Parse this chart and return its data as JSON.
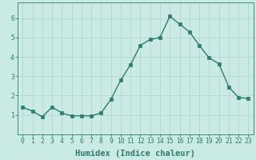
{
  "x": [
    0,
    1,
    2,
    3,
    4,
    5,
    6,
    7,
    8,
    9,
    10,
    11,
    12,
    13,
    14,
    15,
    16,
    17,
    18,
    19,
    20,
    21,
    22,
    23
  ],
  "y": [
    1.4,
    1.2,
    0.9,
    1.4,
    1.1,
    0.95,
    0.95,
    0.95,
    1.1,
    1.8,
    2.8,
    3.6,
    4.6,
    4.9,
    5.0,
    6.1,
    5.7,
    5.3,
    4.6,
    3.95,
    3.65,
    2.45,
    1.9,
    1.85
  ],
  "line_color": "#2e7d6e",
  "bg_color": "#caeae5",
  "grid_color": "#b8d8d3",
  "xlabel": "Humidex (Indice chaleur)",
  "ylim": [
    0,
    6.8
  ],
  "xlim": [
    -0.5,
    23.5
  ],
  "yticks": [
    1,
    2,
    3,
    4,
    5,
    6
  ],
  "xticks": [
    0,
    1,
    2,
    3,
    4,
    5,
    6,
    7,
    8,
    9,
    10,
    11,
    12,
    13,
    14,
    15,
    16,
    17,
    18,
    19,
    20,
    21,
    22,
    23
  ],
  "xtick_labels": [
    "0",
    "1",
    "2",
    "3",
    "4",
    "5",
    "6",
    "7",
    "8",
    "9",
    "10",
    "11",
    "12",
    "13",
    "14",
    "15",
    "16",
    "17",
    "18",
    "19",
    "20",
    "21",
    "22",
    "23"
  ],
  "marker": "s",
  "marker_size": 2.2,
  "line_width": 1.0,
  "xlabel_fontsize": 7.5,
  "tick_fontsize": 5.8,
  "label_color": "#2e7d6e"
}
